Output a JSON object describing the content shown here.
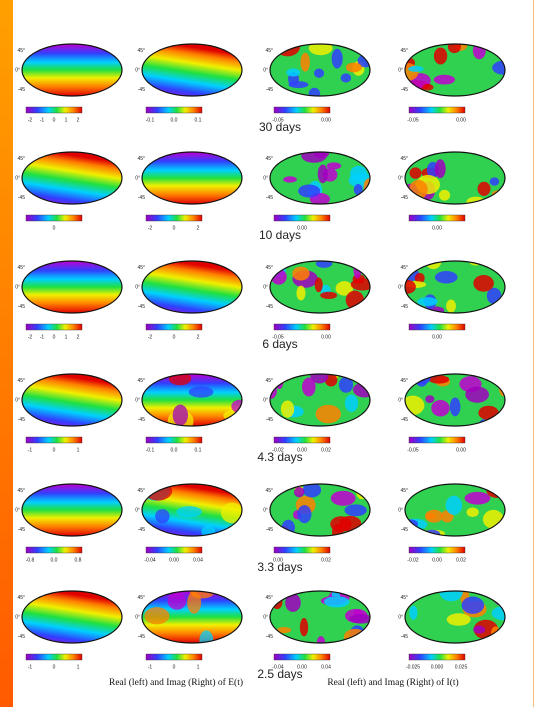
{
  "lat_labels": [
    "45°",
    "0°",
    "-45"
  ],
  "rows": [
    {
      "label": "30 days",
      "panels": [
        {
          "ticks": [
            "-2",
            "-1",
            "0",
            "1",
            "2"
          ]
        },
        {
          "ticks": [
            "-0.1",
            "0.0",
            "0.1"
          ]
        },
        {
          "ticks": [
            "-0.05",
            "0.00"
          ]
        },
        {
          "ticks": [
            "-0.05",
            "0.00"
          ]
        }
      ]
    },
    {
      "label": "10 days",
      "panels": [
        {
          "ticks": [
            "0"
          ]
        },
        {
          "ticks": [
            "-2",
            "0",
            "2"
          ]
        },
        {
          "ticks": [
            "0.00"
          ]
        },
        {
          "ticks": [
            "0.00"
          ]
        }
      ]
    },
    {
      "label": "6 days",
      "panels": [
        {
          "ticks": [
            "-2",
            "-1",
            "0",
            "1",
            "2"
          ]
        },
        {
          "ticks": [
            "-2",
            "0",
            "2"
          ]
        },
        {
          "ticks": [
            "-0.05",
            "0.00"
          ]
        },
        {
          "ticks": [
            "0.00"
          ]
        }
      ]
    },
    {
      "label": "4.3 days",
      "panels": [
        {
          "ticks": [
            "-1",
            "0",
            "1"
          ]
        },
        {
          "ticks": [
            "-0.1",
            "0.0",
            "0.1"
          ]
        },
        {
          "ticks": [
            "-0.02",
            "0.00",
            "0.02"
          ]
        },
        {
          "ticks": [
            "-0.05",
            "0.00"
          ]
        }
      ]
    },
    {
      "label": "3.3 days",
      "panels": [
        {
          "ticks": [
            "-0.8",
            "0.0",
            "0.8"
          ]
        },
        {
          "ticks": [
            "-0.04",
            "0.00",
            "0.04"
          ]
        },
        {
          "ticks": [
            "0.00",
            "0.02"
          ]
        },
        {
          "ticks": [
            "-0.02",
            "0.00",
            "0.02"
          ]
        }
      ]
    },
    {
      "label": "2.5 days",
      "panels": [
        {
          "ticks": [
            "-1",
            "0",
            "1"
          ]
        },
        {
          "ticks": [
            "-1",
            "0",
            "1"
          ]
        },
        {
          "ticks": [
            "-0.04",
            "0.00",
            "0.04"
          ]
        },
        {
          "ticks": [
            "-0.025",
            "0.000",
            "0.025"
          ]
        }
      ]
    }
  ],
  "footer": {
    "left": "Real (left) and Imag (Right) of E(t)",
    "right": "Real (left) and Imag (Right) of I(t)"
  }
}
